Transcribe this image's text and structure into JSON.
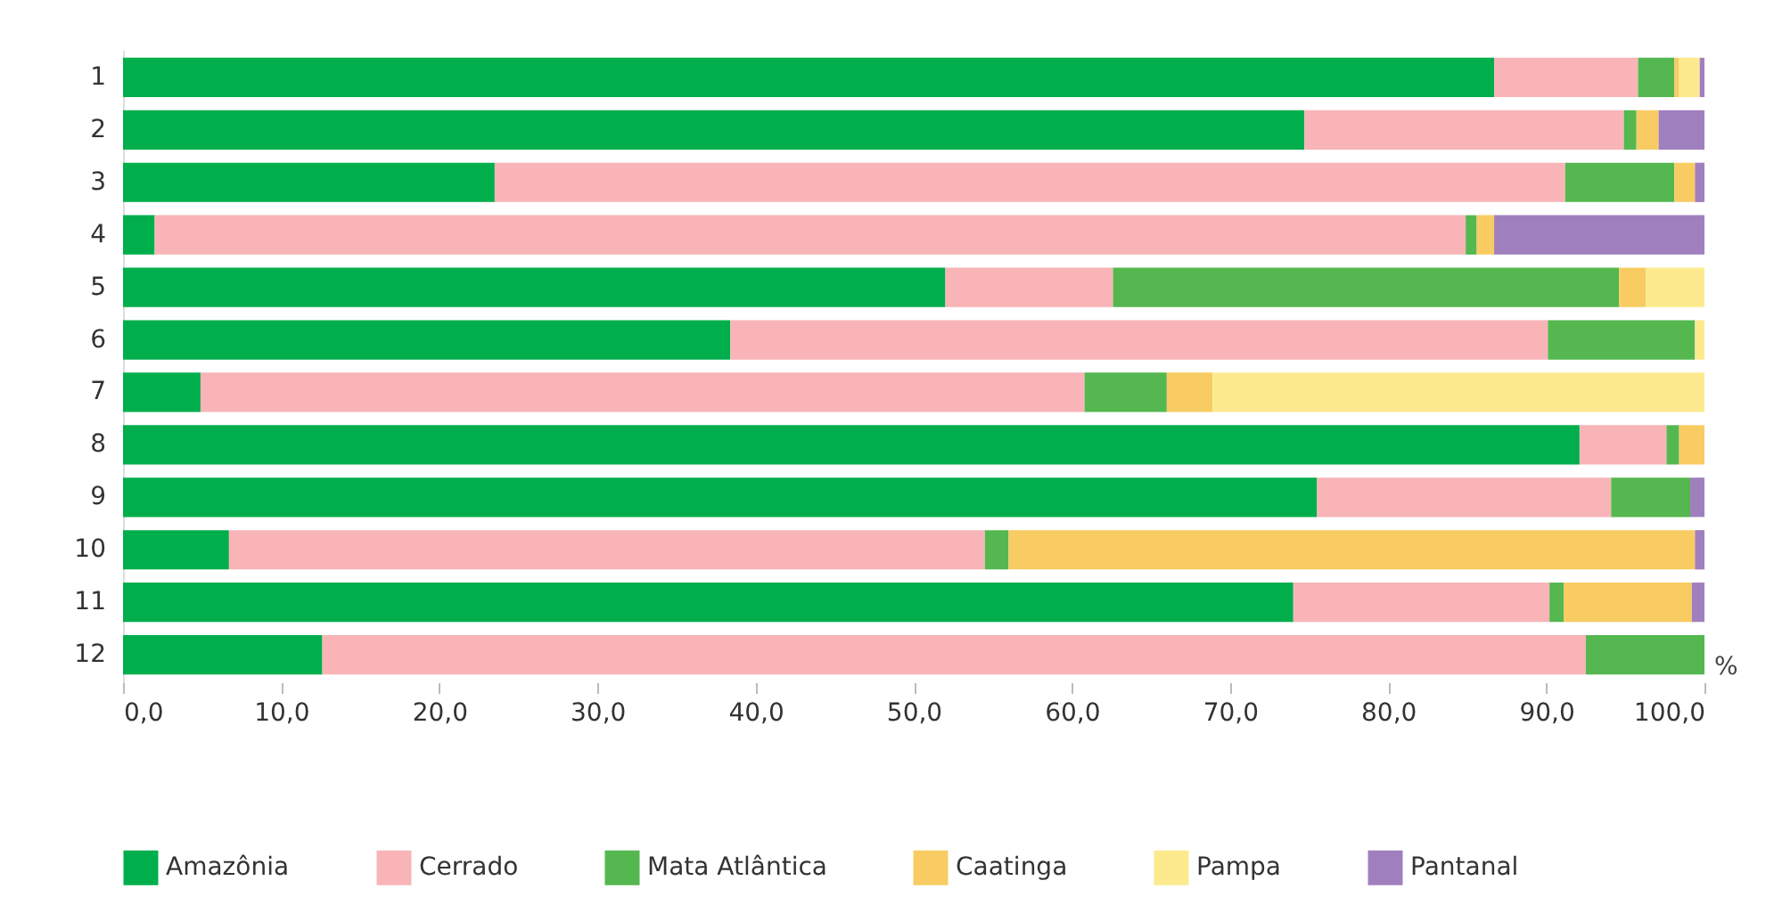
{
  "chart_data": {
    "type": "bar",
    "orientation": "horizontal",
    "stacked": true,
    "categories": [
      "1",
      "2",
      "3",
      "4",
      "5",
      "6",
      "7",
      "8",
      "9",
      "10",
      "11",
      "12"
    ],
    "series": [
      {
        "name": "Amazônia",
        "color": "#00ae4c",
        "values": [
          86.7,
          74.7,
          23.5,
          2.0,
          52.0,
          38.4,
          4.9,
          92.1,
          75.5,
          6.7,
          74.0,
          12.6
        ]
      },
      {
        "name": "Cerrado",
        "color": "#f8b4b7",
        "values": [
          9.1,
          20.2,
          67.7,
          82.9,
          10.6,
          51.7,
          55.9,
          5.5,
          18.6,
          47.8,
          16.2,
          79.9
        ]
      },
      {
        "name": "Mata Atlântica",
        "color": "#55b74f",
        "values": [
          2.3,
          0.8,
          6.9,
          0.7,
          32.0,
          9.3,
          5.2,
          0.8,
          5.0,
          1.5,
          0.9,
          7.5
        ]
      },
      {
        "name": "Caatinga",
        "color": "#f8cc62",
        "values": [
          0.3,
          1.4,
          1.3,
          1.1,
          1.7,
          0,
          2.9,
          1.6,
          0,
          43.4,
          8.1,
          0
        ]
      },
      {
        "name": "Pampa",
        "color": "#fdea8e",
        "values": [
          1.3,
          0,
          0,
          0,
          3.7,
          0.6,
          31.1,
          0,
          0,
          0,
          0,
          0
        ]
      },
      {
        "name": "Pantanal",
        "color": "#a07fbe",
        "values": [
          0.3,
          2.9,
          0.6,
          13.3,
          0,
          0,
          0,
          0,
          0.9,
          0.6,
          0.8,
          0
        ]
      }
    ],
    "xlabel": "%",
    "xlim": [
      0,
      100
    ],
    "xticks": [
      {
        "value": 0,
        "label": "0,0"
      },
      {
        "value": 10,
        "label": "10,0"
      },
      {
        "value": 20,
        "label": "20,0"
      },
      {
        "value": 30,
        "label": "30,0"
      },
      {
        "value": 40,
        "label": "40,0"
      },
      {
        "value": 50,
        "label": "50,0"
      },
      {
        "value": 60,
        "label": "60,0"
      },
      {
        "value": 70,
        "label": "70,0"
      },
      {
        "value": 80,
        "label": "80,0"
      },
      {
        "value": 90,
        "label": "90,0"
      },
      {
        "value": 100,
        "label": "100,0"
      }
    ],
    "grid": false,
    "legend": "bottom"
  }
}
